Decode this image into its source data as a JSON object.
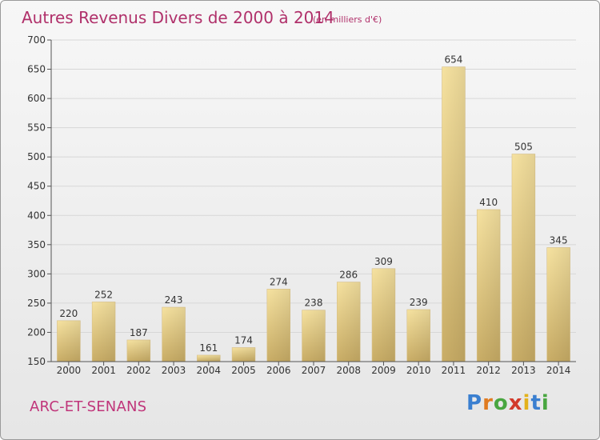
{
  "header": {
    "title": "Autres Revenus Divers de 2000 à 2014",
    "unit": "(en milliers d'€)"
  },
  "footer": {
    "place": "ARC-ET-SENANS",
    "logo_letters": [
      {
        "ch": "P",
        "color": "#3a7fd0"
      },
      {
        "ch": "r",
        "color": "#e07b20"
      },
      {
        "ch": "o",
        "color": "#49a640"
      },
      {
        "ch": "x",
        "color": "#d23a2b"
      },
      {
        "ch": "i",
        "color": "#e3b11a"
      },
      {
        "ch": "t",
        "color": "#3a7fd0"
      },
      {
        "ch": "i",
        "color": "#49a640"
      }
    ]
  },
  "chart_data": {
    "type": "bar",
    "title": "Autres Revenus Divers de 2000 à 2014",
    "subtitle": "(en milliers d'€)",
    "categories": [
      "2000",
      "2001",
      "2002",
      "2003",
      "2004",
      "2005",
      "2006",
      "2007",
      "2008",
      "2009",
      "2010",
      "2011",
      "2012",
      "2013",
      "2014"
    ],
    "values": [
      220,
      252,
      187,
      243,
      161,
      174,
      274,
      238,
      286,
      309,
      239,
      654,
      410,
      505,
      345
    ],
    "ylim": [
      150,
      700
    ],
    "yticks": [
      150,
      200,
      250,
      300,
      350,
      400,
      450,
      500,
      550,
      600,
      650,
      700
    ],
    "grid": true,
    "bar_color": "#e6cc85",
    "grid_color": "#d7d7d7"
  }
}
